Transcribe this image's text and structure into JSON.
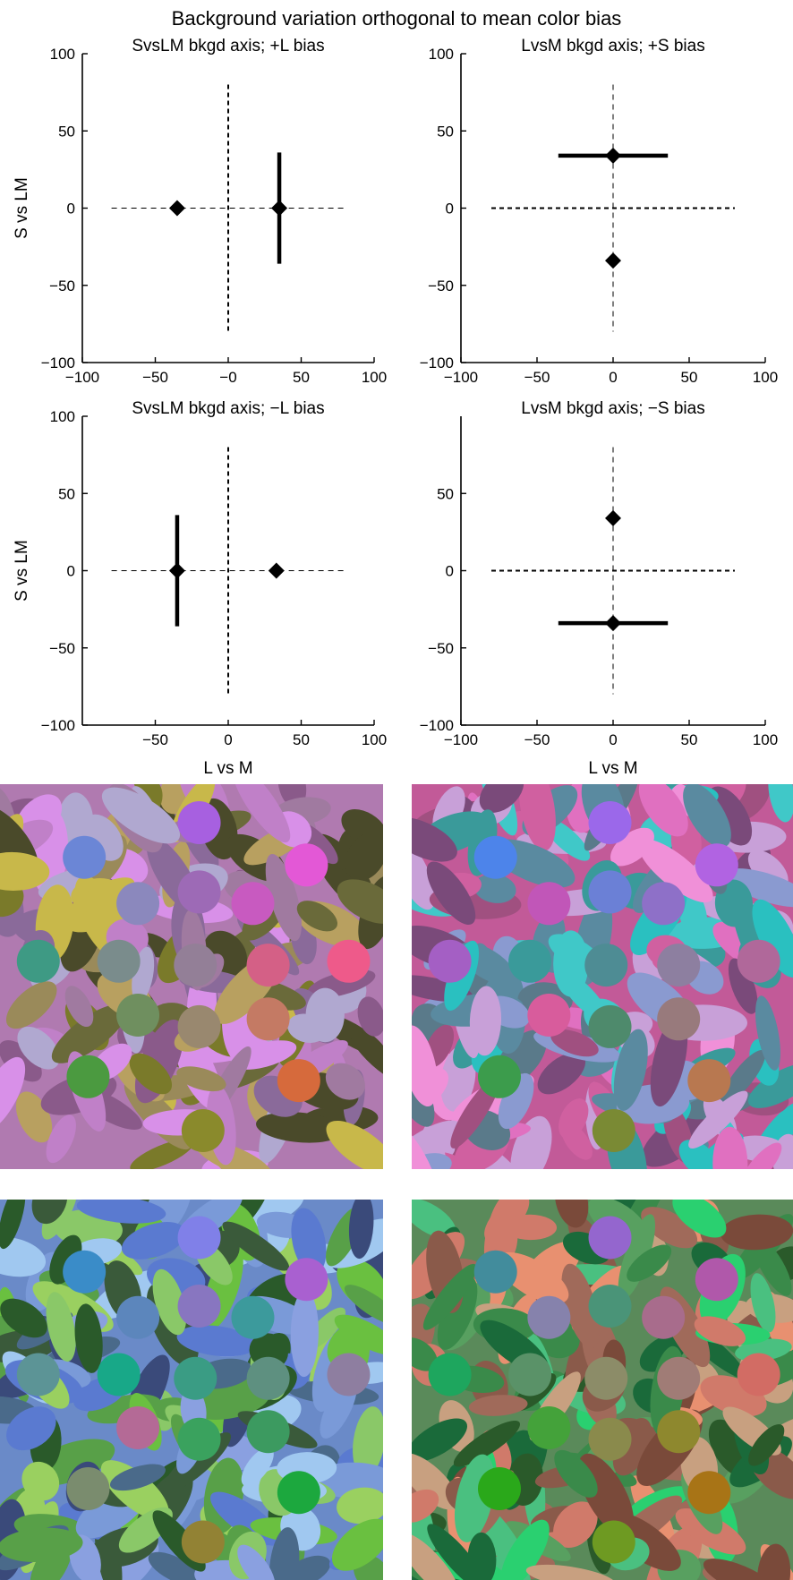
{
  "figure_title": "Background variation orthogonal to mean color bias",
  "chart_data": [
    {
      "type": "scatter",
      "title": "SvsLM bkgd axis; +L bias",
      "xlabel": "",
      "ylabel": "S vs LM",
      "xlim": [
        -100,
        100
      ],
      "ylim": [
        -100,
        100
      ],
      "xticks": [
        "−100",
        "−50",
        "−0",
        "50",
        "100"
      ],
      "yticks": [
        "100",
        "50",
        "0",
        "−50",
        "−100"
      ],
      "grid": false,
      "background_axis": "vertical",
      "points": [
        {
          "x": -35,
          "y": 0
        },
        {
          "x": 35,
          "y": 0,
          "yerr": 36
        }
      ]
    },
    {
      "type": "scatter",
      "title": "LvsM bkgd axis; +S bias",
      "xlabel": "",
      "ylabel": "",
      "xlim": [
        -100,
        100
      ],
      "ylim": [
        -100,
        100
      ],
      "xticks": [
        "−100",
        "−50",
        "0",
        "50",
        "100"
      ],
      "yticks": [
        "100",
        "50",
        "0",
        "−50",
        "−100"
      ],
      "grid": false,
      "background_axis": "horizontal",
      "points": [
        {
          "x": 0,
          "y": 34,
          "xerr": 36
        },
        {
          "x": 0,
          "y": -34
        }
      ]
    },
    {
      "type": "scatter",
      "title": "SvsLM bkgd axis; −L bias",
      "xlabel": "L vs M",
      "ylabel": "S vs LM",
      "xlim": [
        -100,
        100
      ],
      "ylim": [
        -100,
        100
      ],
      "xticks": [
        "−50",
        "0",
        "50",
        "100"
      ],
      "yticks": [
        "100",
        "50",
        "0",
        "−50",
        "−100"
      ],
      "grid": false,
      "background_axis": "vertical",
      "points": [
        {
          "x": -35,
          "y": 0,
          "yerr": 36
        },
        {
          "x": 33,
          "y": 0
        }
      ]
    },
    {
      "type": "scatter",
      "title": "LvsM bkgd axis; −S bias",
      "xlabel": "L vs M",
      "ylabel": "",
      "xlim": [
        -100,
        100
      ],
      "ylim": [
        -100,
        100
      ],
      "xticks": [
        "−100",
        "−50",
        "0",
        "50",
        "100"
      ],
      "yticks": [
        "50",
        "0",
        "−50",
        "−100"
      ],
      "grid": false,
      "background_axis": "horizontal",
      "points": [
        {
          "x": 0,
          "y": 34
        },
        {
          "x": 0,
          "y": -34,
          "xerr": 36
        }
      ]
    }
  ],
  "stimulus_panels": [
    {
      "id": "svslm-plus-l",
      "background": "#b07ab0",
      "ellipse_palette": [
        "#7a7a2a",
        "#b0a8d0",
        "#8a6a9a",
        "#c8b84a",
        "#a07aa0",
        "#6a6a3a",
        "#d890e8",
        "#9a8a5a",
        "#c080c8",
        "#4a4a2a",
        "#b8a060",
        "#8a5a8a"
      ],
      "discs": [
        "#a760e0",
        "#6b86d6",
        "#e358d6",
        "#8b88bd",
        "#9d6ab6",
        "#c85ac0",
        "#3e9a84",
        "#7a8c8c",
        "#937f97",
        "#d46086",
        "#ee5a8a",
        "#6f8f5f",
        "#99886f",
        "#c47a64",
        "#4b9a40",
        "#d66a3c",
        "#8a8a2c"
      ]
    },
    {
      "id": "lvsm-plus-s",
      "background": "#c25a98",
      "ellipse_palette": [
        "#40c8c8",
        "#f090d8",
        "#5a8aa0",
        "#a05080",
        "#e070c0",
        "#3a9a9a",
        "#8a9ad0",
        "#7a4a7a",
        "#c8a0d8",
        "#2ac0c0",
        "#d060a0",
        "#5a7a8a"
      ],
      "discs": [
        "#9b68ea",
        "#4d84ea",
        "#b163e2",
        "#c156b8",
        "#6b80d6",
        "#8e70c8",
        "#a45fc4",
        "#3a9a9a",
        "#4e8c94",
        "#8d7fa0",
        "#b0689a",
        "#d85c9c",
        "#4e8a6c",
        "#987a7c",
        "#3c9c4c",
        "#b87850",
        "#7a8a34"
      ]
    },
    {
      "id": "svslm-minus-l",
      "background": "#6a8ac8",
      "ellipse_palette": [
        "#6ac040",
        "#8aa0e0",
        "#3a5a3a",
        "#5a7ad0",
        "#9ad060",
        "#4a6a8a",
        "#7a9ad8",
        "#2a5a2a",
        "#a0c8f0",
        "#58a048",
        "#3a4a7a",
        "#8ac868"
      ],
      "discs": [
        "#8080e8",
        "#3a8cc8",
        "#a960d0",
        "#5c86bc",
        "#8876c0",
        "#3c9a9c",
        "#5c9496",
        "#18a888",
        "#3a9c84",
        "#5e9080",
        "#8e7ea0",
        "#b46a96",
        "#3aa25e",
        "#3c9a60",
        "#7a8c6e",
        "#1ca83e",
        "#928234"
      ]
    },
    {
      "id": "lvsm-minus-s",
      "background": "#5a8a5a",
      "ellipse_palette": [
        "#e89070",
        "#2ad070",
        "#8a5a4a",
        "#3a8a4a",
        "#c8a080",
        "#1a6a3a",
        "#a06a5a",
        "#4ac080",
        "#7a4a3a",
        "#58a060",
        "#d07a6a",
        "#2a5a2a"
      ],
      "discs": [
        "#9466ce",
        "#428c9c",
        "#b058aa",
        "#8682ac",
        "#4a9478",
        "#a86c8c",
        "#1ea65e",
        "#5a9268",
        "#8c8c68",
        "#a07c76",
        "#d26c64",
        "#44a23a",
        "#8a8a4c",
        "#8e882e",
        "#2aa81a",
        "#a87416",
        "#6e9a22"
      ]
    }
  ]
}
